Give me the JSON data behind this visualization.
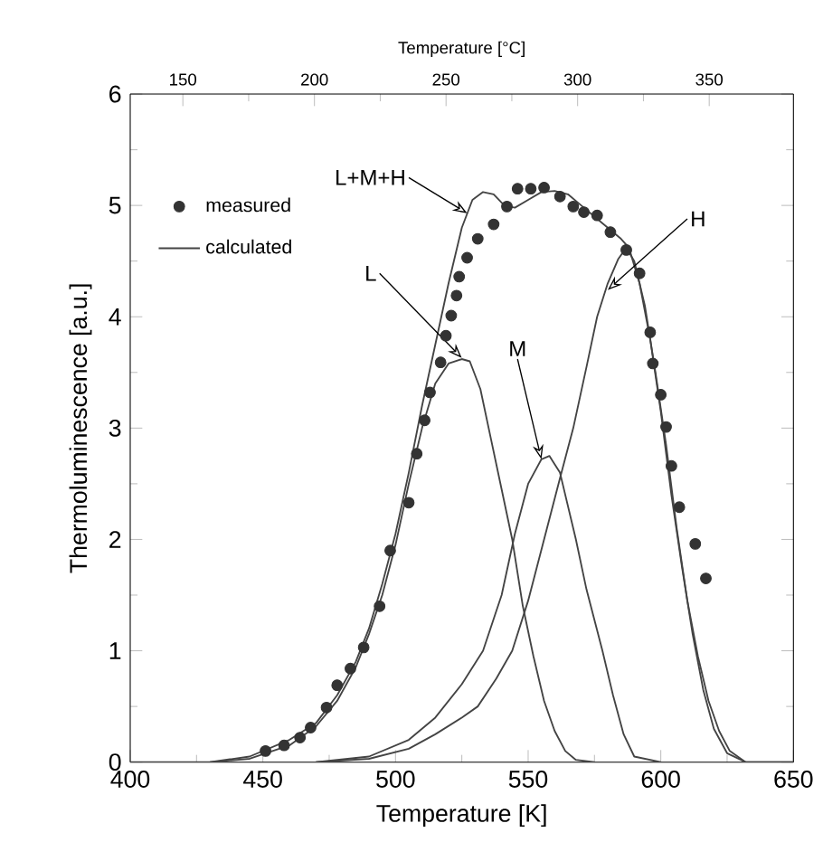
{
  "chart_data": {
    "type": "line",
    "xlabel": "Temperature     [K]",
    "ylabel": "Thermoluminescence   [a.u.]",
    "x2label": "Temperature     [°C]",
    "xlim": [
      400,
      650
    ],
    "xticks": [
      400,
      450,
      500,
      550,
      600,
      650
    ],
    "ylim": [
      0,
      6
    ],
    "yticks": [
      0,
      1,
      2,
      3,
      4,
      5,
      6
    ],
    "x2lim": [
      130,
      382
    ],
    "x2ticks": [
      150,
      200,
      250,
      300,
      350
    ],
    "legend": "top left",
    "line_style": "solid",
    "series": [
      {
        "name": "measured",
        "type": "scatter",
        "color": "#333333",
        "x": [
          451,
          458,
          464,
          468,
          474,
          478,
          483,
          488,
          494,
          498,
          505,
          508,
          511,
          513,
          517,
          519,
          521,
          523,
          524,
          527,
          531,
          537,
          542,
          546,
          551,
          556,
          562,
          567,
          571,
          576,
          581,
          587,
          592,
          596,
          597,
          600,
          602,
          604,
          607,
          613,
          617
        ],
        "values": [
          0.1,
          0.15,
          0.22,
          0.31,
          0.49,
          0.69,
          0.84,
          1.03,
          1.4,
          1.9,
          2.33,
          2.77,
          3.07,
          3.32,
          3.59,
          3.83,
          4.01,
          4.19,
          4.36,
          4.53,
          4.7,
          4.83,
          4.99,
          5.15,
          5.15,
          5.16,
          5.08,
          4.99,
          4.94,
          4.91,
          4.76,
          4.6,
          4.39,
          3.86,
          3.58,
          3.3,
          3.01,
          2.66,
          2.29,
          1.96,
          1.65
        ]
      },
      {
        "name": "calculated",
        "color": "#444444",
        "x": [
          400,
          430,
          445,
          460,
          470,
          478,
          485,
          490,
          495,
          500,
          505,
          510,
          515,
          520,
          525,
          529,
          533,
          537,
          541,
          545,
          550,
          555,
          560,
          565,
          570,
          575,
          580,
          585,
          588,
          592,
          596,
          600,
          604,
          608,
          612,
          616,
          620,
          625,
          632,
          650
        ],
        "values": [
          0,
          0,
          0.05,
          0.2,
          0.35,
          0.6,
          0.9,
          1.2,
          1.6,
          2.05,
          2.6,
          3.2,
          3.75,
          4.3,
          4.8,
          5.05,
          5.12,
          5.1,
          5.0,
          4.98,
          5.05,
          5.12,
          5.13,
          5.1,
          5.0,
          4.9,
          4.8,
          4.7,
          4.62,
          4.3,
          3.8,
          3.15,
          2.4,
          1.75,
          1.15,
          0.65,
          0.3,
          0.08,
          0,
          0
        ]
      },
      {
        "color": "#444444",
        "x": [
          430,
          445,
          460,
          470,
          478,
          485,
          490,
          495,
          500,
          505,
          510,
          515,
          520,
          525,
          528,
          532,
          536,
          540,
          544,
          548,
          552,
          556,
          560,
          564,
          568,
          575
        ],
        "values": [
          0,
          0.03,
          0.15,
          0.32,
          0.55,
          0.85,
          1.15,
          1.5,
          1.95,
          2.5,
          3.0,
          3.4,
          3.58,
          3.62,
          3.6,
          3.35,
          2.9,
          2.45,
          2.0,
          1.4,
          0.95,
          0.55,
          0.28,
          0.1,
          0.02,
          0
        ]
      },
      {
        "color": "#444444",
        "x": [
          470,
          490,
          505,
          515,
          525,
          533,
          540,
          545,
          550,
          555,
          558,
          562,
          565,
          568,
          572,
          578,
          582,
          586,
          590,
          600
        ],
        "values": [
          0,
          0.05,
          0.2,
          0.4,
          0.7,
          1.0,
          1.5,
          2.05,
          2.5,
          2.72,
          2.75,
          2.6,
          2.3,
          2.0,
          1.55,
          1.0,
          0.6,
          0.25,
          0.05,
          0
        ]
      },
      {
        "color": "#444444",
        "x": [
          470,
          490,
          505,
          515,
          525,
          531,
          538,
          544,
          550,
          556,
          562,
          567,
          572,
          576,
          580,
          584,
          587,
          590,
          594,
          598,
          602,
          606,
          610,
          614,
          618,
          622,
          626,
          632,
          650
        ],
        "values": [
          0,
          0.03,
          0.12,
          0.25,
          0.4,
          0.5,
          0.75,
          1.0,
          1.45,
          2.0,
          2.55,
          3.0,
          3.55,
          4.0,
          4.3,
          4.52,
          4.62,
          4.5,
          4.1,
          3.5,
          2.85,
          2.1,
          1.45,
          0.95,
          0.55,
          0.28,
          0.1,
          0,
          0
        ]
      }
    ],
    "annotations": [
      {
        "text": "L+M+H",
        "x": 527,
        "y": 4.93
      },
      {
        "text": "L",
        "x": 525,
        "y": 3.63
      },
      {
        "text": "M",
        "x": 555,
        "y": 2.72
      },
      {
        "text": "H",
        "x": 580,
        "y": 4.24
      }
    ]
  }
}
